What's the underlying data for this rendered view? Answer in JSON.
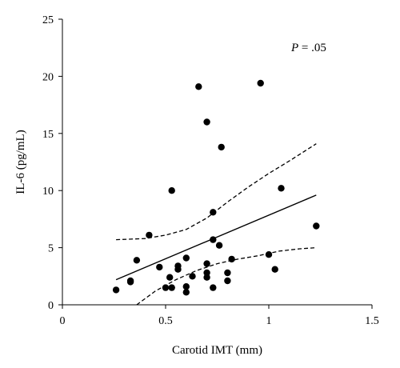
{
  "chart_data": {
    "type": "scatter",
    "xlabel": "Carotid IMT (mm)",
    "ylabel": "IL-6 (pg/mL)",
    "xlim": [
      0,
      1.5
    ],
    "ylim": [
      0,
      25
    ],
    "x_ticks": [
      0,
      0.5,
      1,
      1.5
    ],
    "x_tick_labels": [
      "0",
      "0.5",
      "1",
      "1.5"
    ],
    "y_ticks": [
      0,
      5,
      10,
      15,
      20,
      25
    ],
    "y_tick_labels": [
      "0",
      "5",
      "10",
      "15",
      "20",
      "25"
    ],
    "grid": false,
    "annotation": {
      "symbol": "P",
      "text": " = .05"
    },
    "points": [
      {
        "x": 0.26,
        "y": 1.3
      },
      {
        "x": 0.33,
        "y": 2.0
      },
      {
        "x": 0.33,
        "y": 2.1
      },
      {
        "x": 0.36,
        "y": 3.9
      },
      {
        "x": 0.42,
        "y": 6.1
      },
      {
        "x": 0.47,
        "y": 3.3
      },
      {
        "x": 0.5,
        "y": 1.5
      },
      {
        "x": 0.52,
        "y": 2.4
      },
      {
        "x": 0.53,
        "y": 1.5
      },
      {
        "x": 0.53,
        "y": 10.0
      },
      {
        "x": 0.56,
        "y": 3.4
      },
      {
        "x": 0.56,
        "y": 3.1
      },
      {
        "x": 0.6,
        "y": 4.1
      },
      {
        "x": 0.6,
        "y": 1.6
      },
      {
        "x": 0.6,
        "y": 1.1
      },
      {
        "x": 0.63,
        "y": 2.5
      },
      {
        "x": 0.66,
        "y": 19.1
      },
      {
        "x": 0.7,
        "y": 16.0
      },
      {
        "x": 0.7,
        "y": 3.6
      },
      {
        "x": 0.7,
        "y": 2.8
      },
      {
        "x": 0.7,
        "y": 2.4
      },
      {
        "x": 0.73,
        "y": 8.1
      },
      {
        "x": 0.73,
        "y": 5.7
      },
      {
        "x": 0.73,
        "y": 1.5
      },
      {
        "x": 0.76,
        "y": 5.2
      },
      {
        "x": 0.77,
        "y": 13.8
      },
      {
        "x": 0.8,
        "y": 2.8
      },
      {
        "x": 0.8,
        "y": 2.1
      },
      {
        "x": 0.82,
        "y": 4.0
      },
      {
        "x": 0.96,
        "y": 19.4
      },
      {
        "x": 1.0,
        "y": 4.4
      },
      {
        "x": 1.03,
        "y": 3.1
      },
      {
        "x": 1.06,
        "y": 10.2
      },
      {
        "x": 1.23,
        "y": 6.9
      }
    ],
    "fit_line": {
      "x": [
        0.26,
        1.23
      ],
      "y": [
        2.2,
        9.6
      ]
    },
    "upper_ci": {
      "x": [
        0.26,
        0.4,
        0.5,
        0.6,
        0.7,
        0.8,
        0.9,
        1.0,
        1.1,
        1.23
      ],
      "y": [
        5.7,
        5.8,
        6.1,
        6.6,
        7.6,
        9.0,
        10.3,
        11.5,
        12.6,
        14.1
      ]
    },
    "lower_ci": {
      "x": [
        0.36,
        0.45,
        0.55,
        0.65,
        0.75,
        0.85,
        0.95,
        1.05,
        1.15,
        1.23
      ],
      "y": [
        0.0,
        1.2,
        2.2,
        3.0,
        3.6,
        4.0,
        4.3,
        4.7,
        4.9,
        5.0
      ]
    }
  }
}
